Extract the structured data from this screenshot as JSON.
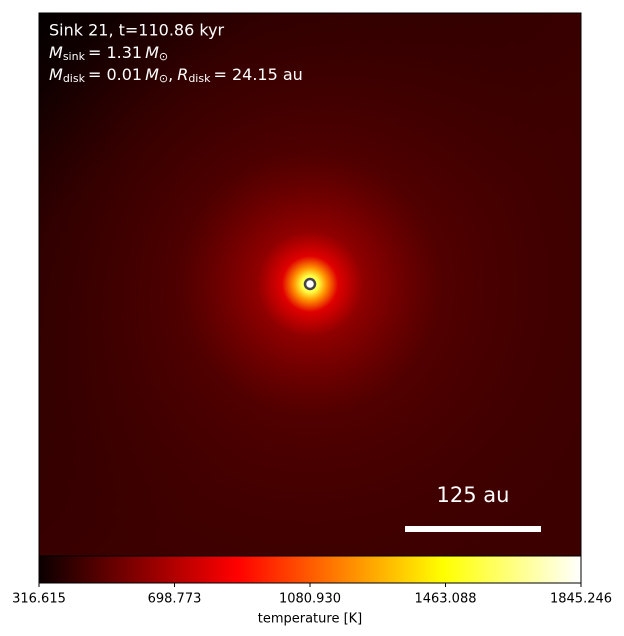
{
  "chart_data": {
    "type": "heatmap",
    "annotation_line1": "Sink 21, t=110.86 kyr",
    "annotation_line2": [
      "M",
      "sink",
      "= 1.31",
      "M",
      "⊙"
    ],
    "annotation_line3": [
      "M",
      "disk",
      "= 0.01",
      "M",
      "⊙",
      ",",
      "R",
      "disk",
      "= 24.15 au"
    ],
    "scale_bar_label": "125 au",
    "colorbar": {
      "label": "temperature [K]",
      "lim": [
        316.615,
        1845.246
      ],
      "ticks": [
        316.615,
        698.773,
        {
          "value": 1080.93,
          "label": "1080.930"
        },
        1463.088,
        1845.246
      ]
    }
  }
}
